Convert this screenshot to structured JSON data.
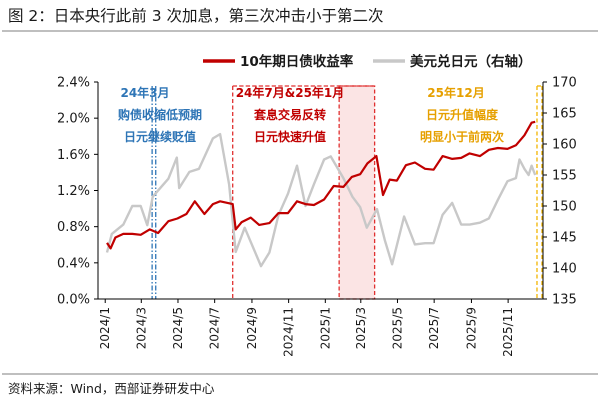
{
  "figure": {
    "title": "图 2：日本央行此前 3 次加息，第三次冲击小于第二次",
    "source": "资料来源：Wind，西部证券研发中心"
  },
  "legend": {
    "series1": "10年期日债收益率",
    "series2": "美元兑日元（右轴）"
  },
  "annotations": {
    "a1": [
      "24年3月",
      "购债收缩低预期",
      "日元继续贬值"
    ],
    "a2": [
      "24年7月&25年1月",
      "套息交易反转",
      "日元快速升值"
    ],
    "a3": [
      "25年12月",
      "日元升值幅度",
      "明显小于前两次"
    ]
  },
  "colors": {
    "jgb": "#c00000",
    "usdjpy": "#c8c8c8",
    "blue": "#2e75b6",
    "red": "#e03030",
    "gold": "#f2b400",
    "shade": "#fbe4e4"
  },
  "chart_data": {
    "type": "line",
    "x_ticks": [
      "2024/1",
      "2024/3",
      "2024/5",
      "2024/7",
      "2024/9",
      "2024/11",
      "2025/1",
      "2025/3",
      "2025/5",
      "2025/7",
      "2025/9",
      "2025/11"
    ],
    "y_left": {
      "ticks": [
        "0.0%",
        "0.4%",
        "0.8%",
        "1.2%",
        "1.6%",
        "2.0%",
        "2.4%"
      ],
      "ylim": [
        0,
        2.4
      ]
    },
    "y_right": {
      "ticks": [
        "135",
        "140",
        "145",
        "150",
        "155",
        "160",
        "165",
        "170"
      ],
      "ylim": [
        135,
        170
      ]
    },
    "series": [
      {
        "name": "10年期日债收益率",
        "axis": "left",
        "points": [
          [
            "2024-01-04",
            0.62
          ],
          [
            "2024-01-10",
            0.56
          ],
          [
            "2024-01-18",
            0.68
          ],
          [
            "2024-01-31",
            0.72
          ],
          [
            "2024-02-15",
            0.72
          ],
          [
            "2024-02-29",
            0.71
          ],
          [
            "2024-03-15",
            0.77
          ],
          [
            "2024-03-29",
            0.73
          ],
          [
            "2024-04-15",
            0.86
          ],
          [
            "2024-04-30",
            0.89
          ],
          [
            "2024-05-15",
            0.94
          ],
          [
            "2024-05-29",
            1.08
          ],
          [
            "2024-06-14",
            0.94
          ],
          [
            "2024-06-28",
            1.05
          ],
          [
            "2024-07-10",
            1.08
          ],
          [
            "2024-07-31",
            1.05
          ],
          [
            "2024-08-05",
            0.77
          ],
          [
            "2024-08-15",
            0.85
          ],
          [
            "2024-08-30",
            0.9
          ],
          [
            "2024-09-13",
            0.82
          ],
          [
            "2024-09-30",
            0.84
          ],
          [
            "2024-10-15",
            0.95
          ],
          [
            "2024-10-31",
            0.95
          ],
          [
            "2024-11-15",
            1.08
          ],
          [
            "2024-11-29",
            1.05
          ],
          [
            "2024-12-13",
            1.04
          ],
          [
            "2024-12-30",
            1.1
          ],
          [
            "2025-01-15",
            1.25
          ],
          [
            "2025-01-31",
            1.24
          ],
          [
            "2025-02-14",
            1.35
          ],
          [
            "2025-02-28",
            1.38
          ],
          [
            "2025-03-12",
            1.5
          ],
          [
            "2025-03-27",
            1.58
          ],
          [
            "2025-04-07",
            1.15
          ],
          [
            "2025-04-18",
            1.32
          ],
          [
            "2025-04-30",
            1.31
          ],
          [
            "2025-05-15",
            1.48
          ],
          [
            "2025-05-30",
            1.51
          ],
          [
            "2025-06-16",
            1.44
          ],
          [
            "2025-06-30",
            1.43
          ],
          [
            "2025-07-15",
            1.58
          ],
          [
            "2025-07-31",
            1.55
          ],
          [
            "2025-08-15",
            1.56
          ],
          [
            "2025-08-29",
            1.61
          ],
          [
            "2025-09-15",
            1.58
          ],
          [
            "2025-09-30",
            1.65
          ],
          [
            "2025-10-15",
            1.67
          ],
          [
            "2025-10-31",
            1.66
          ],
          [
            "2025-11-14",
            1.7
          ],
          [
            "2025-11-28",
            1.81
          ],
          [
            "2025-12-10",
            1.95
          ],
          [
            "2025-12-16",
            1.96
          ]
        ]
      },
      {
        "name": "美元兑日元（右轴）",
        "axis": "right",
        "points": [
          [
            "2024-01-04",
            142.5
          ],
          [
            "2024-01-12",
            145.5
          ],
          [
            "2024-01-31",
            147.0
          ],
          [
            "2024-02-15",
            150.0
          ],
          [
            "2024-02-29",
            150.0
          ],
          [
            "2024-03-11",
            146.9
          ],
          [
            "2024-03-20",
            151.5
          ],
          [
            "2024-04-15",
            154.4
          ],
          [
            "2024-04-29",
            157.8
          ],
          [
            "2024-05-03",
            152.9
          ],
          [
            "2024-05-20",
            155.5
          ],
          [
            "2024-06-05",
            156.0
          ],
          [
            "2024-06-28",
            160.9
          ],
          [
            "2024-07-10",
            161.6
          ],
          [
            "2024-07-25",
            153.5
          ],
          [
            "2024-08-05",
            142.6
          ],
          [
            "2024-08-20",
            146.5
          ],
          [
            "2024-09-16",
            140.3
          ],
          [
            "2024-09-30",
            142.5
          ],
          [
            "2024-10-15",
            148.5
          ],
          [
            "2024-10-31",
            152.0
          ],
          [
            "2024-11-15",
            156.5
          ],
          [
            "2024-11-29",
            150.0
          ],
          [
            "2024-12-13",
            153.5
          ],
          [
            "2024-12-30",
            157.5
          ],
          [
            "2025-01-10",
            158.0
          ],
          [
            "2025-01-31",
            154.5
          ],
          [
            "2025-02-15",
            151.5
          ],
          [
            "2025-02-28",
            149.8
          ],
          [
            "2025-03-11",
            146.5
          ],
          [
            "2025-03-28",
            149.5
          ],
          [
            "2025-04-10",
            144.5
          ],
          [
            "2025-04-22",
            140.6
          ],
          [
            "2025-05-12",
            148.3
          ],
          [
            "2025-05-30",
            143.8
          ],
          [
            "2025-06-16",
            144.0
          ],
          [
            "2025-06-30",
            144.0
          ],
          [
            "2025-07-15",
            148.6
          ],
          [
            "2025-07-31",
            150.5
          ],
          [
            "2025-08-15",
            147.0
          ],
          [
            "2025-08-29",
            147.0
          ],
          [
            "2025-09-15",
            147.3
          ],
          [
            "2025-09-30",
            148.0
          ],
          [
            "2025-10-15",
            151.0
          ],
          [
            "2025-10-31",
            154.0
          ],
          [
            "2025-11-14",
            154.5
          ],
          [
            "2025-11-20",
            157.5
          ],
          [
            "2025-11-28",
            156.0
          ],
          [
            "2025-12-05",
            155.0
          ],
          [
            "2025-12-10",
            156.5
          ],
          [
            "2025-12-16",
            155.0
          ]
        ]
      }
    ],
    "markers": [
      {
        "type": "line",
        "date": "2024-03-19",
        "color": "blue"
      },
      {
        "type": "line",
        "date": "2024-03-25",
        "color": "blue"
      },
      {
        "type": "line",
        "date": "2024-07-31",
        "color": "red"
      },
      {
        "type": "band",
        "from": "2025-01-24",
        "to": "2025-03-24",
        "color": "red"
      },
      {
        "type": "line",
        "date": "2025-12-19",
        "color": "gold"
      }
    ],
    "grid": false,
    "legend_position": "top"
  }
}
